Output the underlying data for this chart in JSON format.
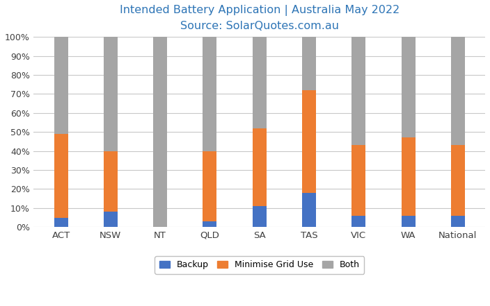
{
  "categories": [
    "ACT",
    "NSW",
    "NT",
    "QLD",
    "SA",
    "TAS",
    "VIC",
    "WA",
    "National"
  ],
  "backup": [
    5,
    8,
    0,
    3,
    11,
    18,
    6,
    6,
    6
  ],
  "minimise_grid": [
    44,
    32,
    0,
    37,
    41,
    54,
    37,
    41,
    37
  ],
  "both": [
    51,
    60,
    100,
    60,
    48,
    28,
    57,
    53,
    57
  ],
  "color_backup": "#4472c4",
  "color_minimise": "#ed7d31",
  "color_both": "#a5a5a5",
  "title_line1": "Intended Battery Application | Australia May 2022",
  "title_line2": "Source: SolarQuotes.com.au",
  "title_color": "#2e75b6",
  "ylabel_ticks": [
    "0%",
    "10%",
    "20%",
    "30%",
    "40%",
    "50%",
    "60%",
    "70%",
    "80%",
    "90%",
    "100%"
  ],
  "legend_labels": [
    "Backup",
    "Minimise Grid Use",
    "Both"
  ],
  "background_color": "#ffffff",
  "bar_width": 0.28,
  "figsize": [
    7.04,
    4.41
  ],
  "dpi": 100
}
